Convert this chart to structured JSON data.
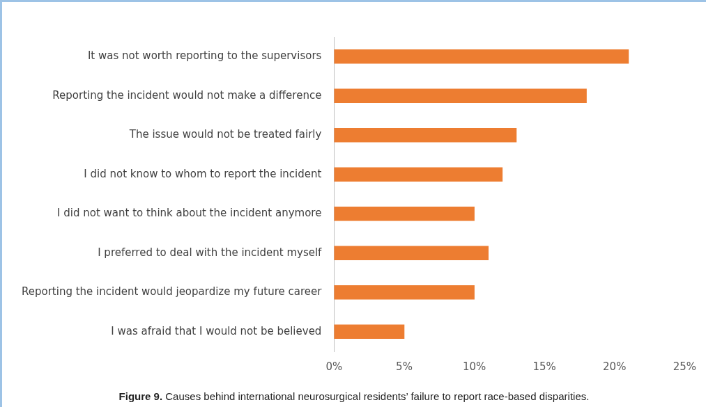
{
  "chart_data": {
    "type": "bar",
    "orientation": "horizontal",
    "categories": [
      "It was not worth reporting to the supervisors",
      "Reporting the incident would not make a difference",
      "The issue would not be treated fairly",
      "I did not know to whom to report the incident",
      "I did not want to think about the incident anymore",
      "I preferred to deal with the incident myself",
      "Reporting the incident would jeopardize my future career",
      "I was afraid that I would not be believed"
    ],
    "values": [
      21,
      18,
      13,
      12,
      10,
      11,
      10,
      5
    ],
    "color": "#ed7d31",
    "xlim": [
      0,
      25
    ],
    "xticks": [
      {
        "value": 0,
        "label": "0%"
      },
      {
        "value": 5,
        "label": "5%"
      },
      {
        "value": 10,
        "label": "10%"
      },
      {
        "value": 15,
        "label": "15%"
      },
      {
        "value": 20,
        "label": "20%"
      },
      {
        "value": 25,
        "label": "25%"
      }
    ],
    "grid": false,
    "legend": false,
    "annotations": [
      "Figure 9.  Causes behind international neurosurgical residents’ failure to report race-based disparities."
    ]
  }
}
